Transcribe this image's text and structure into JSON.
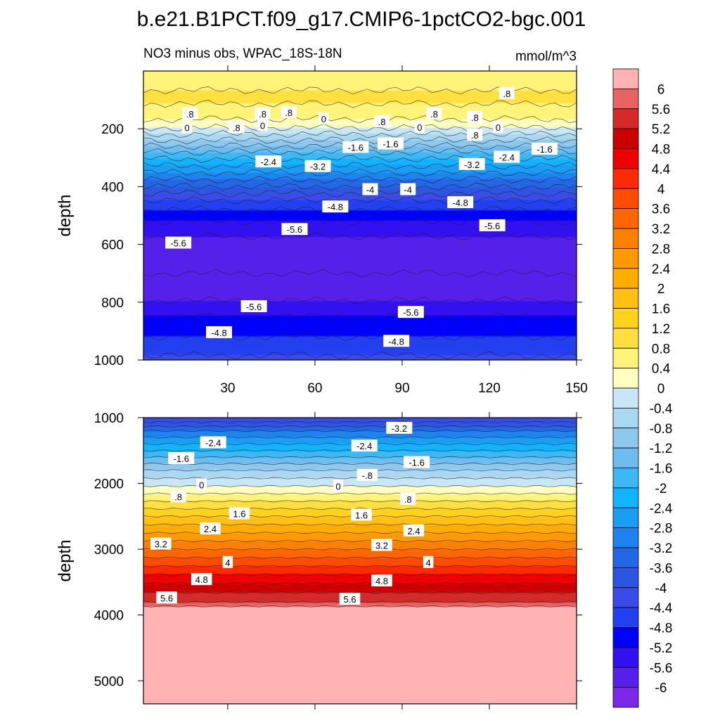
{
  "title": "b.e21.B1PCT.f09_g17.CMIP6-1pctCO2-bgc.001",
  "subtitle_left": "NO3 minus obs, WPAC_18S-18N",
  "subtitle_right": "mmol/m^3",
  "chart_data": {
    "type": "contour",
    "title": "b.e21.B1PCT.f09_g17.CMIP6-1pctCO2-bgc.001",
    "variable": "NO3 minus obs",
    "region": "WPAC_18S-18N",
    "units": "mmol/m^3",
    "xlim": [
      1,
      150
    ],
    "x_ticks": [
      "30",
      "60",
      "90",
      "120",
      "150"
    ],
    "colorbar": {
      "levels": [
        "6",
        "5.6",
        "5.2",
        "4.8",
        "4.4",
        "4",
        "3.6",
        "3.2",
        "2.8",
        "2.4",
        "2",
        "1.6",
        "1.2",
        "0.8",
        "0.4",
        "0",
        "-0.4",
        "-0.8",
        "-1.2",
        "-1.6",
        "-2",
        "-2.4",
        "-2.8",
        "-3.2",
        "-3.6",
        "-4",
        "-4.4",
        "-4.8",
        "-5.2",
        "-5.6",
        "-6"
      ],
      "colors": [
        "#ffb3b3",
        "#e86464",
        "#d42a2a",
        "#cc0000",
        "#ee0000",
        "#ff2a00",
        "#ff4c00",
        "#ff6600",
        "#ff8000",
        "#ff9900",
        "#ffad00",
        "#ffbf14",
        "#ffd21e",
        "#ffe040",
        "#fff37a",
        "#ffffc0",
        "#c8e6f5",
        "#aad8f0",
        "#8ec8ec",
        "#6ebdf0",
        "#3db8f5",
        "#12b4ff",
        "#1a9ef5",
        "#1e82ef",
        "#2366e6",
        "#2e55e0",
        "#3a4be8",
        "#2340f0",
        "#0000ff",
        "#3310f0",
        "#5520ea",
        "#7a2ae6"
      ]
    },
    "panels": [
      {
        "name": "upper",
        "ylabel": "depth",
        "ylim": [
          0,
          1000
        ],
        "y_ticks": [
          "200",
          "400",
          "600",
          "800",
          "1000"
        ],
        "depth_profile": [
          {
            "depth": 0,
            "value": 0.6
          },
          {
            "depth": 100,
            "value": 0.9
          },
          {
            "depth": 180,
            "value": 0.3
          },
          {
            "depth": 230,
            "value": -0.6
          },
          {
            "depth": 280,
            "value": -1.6
          },
          {
            "depth": 340,
            "value": -2.6
          },
          {
            "depth": 400,
            "value": -3.6
          },
          {
            "depth": 460,
            "value": -4.6
          },
          {
            "depth": 530,
            "value": -5.3
          },
          {
            "depth": 600,
            "value": -5.8
          },
          {
            "depth": 700,
            "value": -6.0
          },
          {
            "depth": 780,
            "value": -5.7
          },
          {
            "depth": 850,
            "value": -5.2
          },
          {
            "depth": 920,
            "value": -4.8
          },
          {
            "depth": 1000,
            "value": -4.3
          }
        ],
        "contour_labels": [
          {
            "text": ".8",
            "x": 17,
            "depth": 148
          },
          {
            "text": ".8",
            "x": 42,
            "depth": 148
          },
          {
            "text": ".8",
            "x": 51,
            "depth": 143
          },
          {
            "text": ".8",
            "x": 101,
            "depth": 148
          },
          {
            "text": ".8",
            "x": 115,
            "depth": 160
          },
          {
            "text": ".8",
            "x": 126,
            "depth": 78
          },
          {
            "text": "0",
            "x": 16,
            "depth": 196
          },
          {
            "text": ".8",
            "x": 33,
            "depth": 196
          },
          {
            "text": "0",
            "x": 42,
            "depth": 188
          },
          {
            "text": "0",
            "x": 63,
            "depth": 165
          },
          {
            "text": ".8",
            "x": 83,
            "depth": 175
          },
          {
            "text": "0",
            "x": 96,
            "depth": 195
          },
          {
            "text": "0",
            "x": 123,
            "depth": 195
          },
          {
            "text": ".8",
            "x": 115,
            "depth": 222
          },
          {
            "text": "-1.6",
            "x": 74,
            "depth": 264
          },
          {
            "text": "-1.6",
            "x": 86,
            "depth": 252
          },
          {
            "text": "-1.6",
            "x": 139,
            "depth": 270
          },
          {
            "text": "-2.4",
            "x": 44,
            "depth": 314
          },
          {
            "text": "-2.4",
            "x": 126,
            "depth": 298
          },
          {
            "text": "-3.2",
            "x": 61,
            "depth": 330
          },
          {
            "text": "-3.2",
            "x": 114,
            "depth": 323
          },
          {
            "text": "-4",
            "x": 79,
            "depth": 410
          },
          {
            "text": "-4",
            "x": 92,
            "depth": 410
          },
          {
            "text": "-4.8",
            "x": 67,
            "depth": 470
          },
          {
            "text": "-4.8",
            "x": 110,
            "depth": 455
          },
          {
            "text": "-5.6",
            "x": 53,
            "depth": 548
          },
          {
            "text": "-5.6",
            "x": 121,
            "depth": 535
          },
          {
            "text": "-5.6",
            "x": 13,
            "depth": 595
          },
          {
            "text": "-5.6",
            "x": 39,
            "depth": 815
          },
          {
            "text": "-5.6",
            "x": 93,
            "depth": 835
          },
          {
            "text": "-4.8",
            "x": 27,
            "depth": 905
          },
          {
            "text": "-4.8",
            "x": 88,
            "depth": 935
          }
        ]
      },
      {
        "name": "lower",
        "ylabel": "depth",
        "ylim": [
          1000,
          5350
        ],
        "y_ticks": [
          "1000",
          "2000",
          "3000",
          "4000",
          "5000"
        ],
        "depth_profile": [
          {
            "depth": 1000,
            "value": -4.4
          },
          {
            "depth": 1200,
            "value": -3.2
          },
          {
            "depth": 1500,
            "value": -2.0
          },
          {
            "depth": 1800,
            "value": -0.8
          },
          {
            "depth": 2040,
            "value": 0.0
          },
          {
            "depth": 2500,
            "value": 1.6
          },
          {
            "depth": 3000,
            "value": 3.2
          },
          {
            "depth": 3450,
            "value": 4.6
          },
          {
            "depth": 3800,
            "value": 5.6
          },
          {
            "depth": 3900,
            "value": 6.2
          },
          {
            "depth": 5350,
            "value": 6.2
          }
        ],
        "contour_labels": [
          {
            "text": "-3.2",
            "x": 89,
            "depth": 1160
          },
          {
            "text": "-2.4",
            "x": 25,
            "depth": 1380
          },
          {
            "text": "-2.4",
            "x": 77,
            "depth": 1430
          },
          {
            "text": "-1.6",
            "x": 14,
            "depth": 1620
          },
          {
            "text": "-1.6",
            "x": 95,
            "depth": 1680
          },
          {
            "text": "-.8",
            "x": 78,
            "depth": 1875
          },
          {
            "text": "0",
            "x": 21,
            "depth": 2020
          },
          {
            "text": "0",
            "x": 68,
            "depth": 2040
          },
          {
            "text": ".8",
            "x": 13,
            "depth": 2200
          },
          {
            "text": ".8",
            "x": 92,
            "depth": 2240
          },
          {
            "text": "1.6",
            "x": 34,
            "depth": 2460
          },
          {
            "text": "1.6",
            "x": 76,
            "depth": 2480
          },
          {
            "text": "2.4",
            "x": 24,
            "depth": 2690
          },
          {
            "text": "2.4",
            "x": 94,
            "depth": 2720
          },
          {
            "text": "3.2",
            "x": 7,
            "depth": 2920
          },
          {
            "text": "3.2",
            "x": 83,
            "depth": 2940
          },
          {
            "text": "4",
            "x": 30,
            "depth": 3200
          },
          {
            "text": "4",
            "x": 99,
            "depth": 3200
          },
          {
            "text": "4.8",
            "x": 21,
            "depth": 3460
          },
          {
            "text": "4.8",
            "x": 83,
            "depth": 3480
          },
          {
            "text": "5.6",
            "x": 9,
            "depth": 3740
          },
          {
            "text": "5.6",
            "x": 72,
            "depth": 3760
          }
        ]
      }
    ]
  }
}
